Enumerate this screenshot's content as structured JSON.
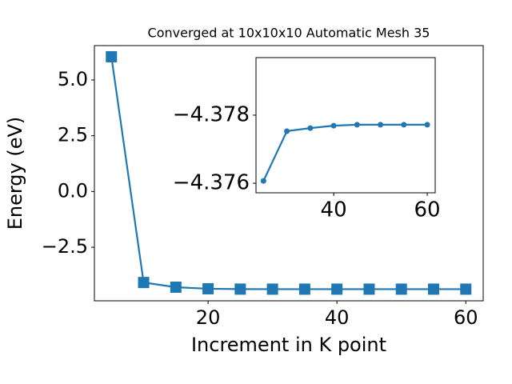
{
  "chart_data": [
    {
      "type": "line",
      "title": "Converged at 10x10x10 Automatic Mesh 35",
      "x_label": "Increment in K point",
      "y_label": "Energy (eV)",
      "x": [
        5,
        10,
        15,
        20,
        25,
        30,
        35,
        40,
        45,
        50,
        55,
        60
      ],
      "series": [
        {
          "name": "energy",
          "color": "#1f77b4",
          "marker": "square",
          "values": [
            6.04,
            -4.08,
            -4.29,
            -4.36,
            -4.37607,
            -4.37753,
            -4.37762,
            -4.37769,
            -4.37772,
            -4.37772,
            -4.37772,
            -4.37772
          ]
        }
      ],
      "xlim": [
        2.36,
        62.7
      ],
      "ylim": [
        -4.9,
        6.54
      ],
      "xticks": [
        20,
        40,
        60
      ],
      "yticks": [
        {
          "value": 5.0,
          "label": "5.0"
        },
        {
          "value": 2.5,
          "label": "2.5"
        },
        {
          "value": 0.0,
          "label": "0.0"
        },
        {
          "value": -2.5,
          "label": "−2.5"
        }
      ]
    },
    {
      "type": "line",
      "x": [
        25,
        30,
        35,
        40,
        45,
        50,
        55,
        60
      ],
      "series": [
        {
          "name": "inset",
          "color": "#1f77b4",
          "marker": "circle",
          "values": [
            -4.37607,
            -4.37753,
            -4.37762,
            -4.37769,
            -4.37772,
            -4.37772,
            -4.37772,
            -4.37772
          ]
        }
      ],
      "xlim": [
        23.4,
        61.7
      ],
      "ylim": [
        -4.37572,
        -4.37969
      ],
      "xticks": [
        40,
        60
      ],
      "yticks": [
        {
          "value": -4.378,
          "label": "−4.378"
        },
        {
          "value": -4.376,
          "label": "−4.376"
        }
      ]
    }
  ]
}
